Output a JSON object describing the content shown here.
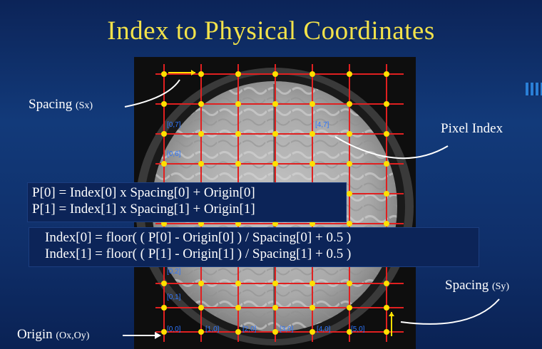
{
  "slide": {
    "title": "Index to Physical Coordinates"
  },
  "labels": {
    "spacing_x": {
      "text": "Spacing",
      "sub": "(Sx)"
    },
    "pixel_index": {
      "text": "Pixel Index"
    },
    "spacing_y": {
      "text": "Spacing",
      "sub": "(Sy)"
    },
    "origin": {
      "text": "Origin",
      "sub": "(Ox,Oy)"
    }
  },
  "formulas": {
    "forward": [
      "P[0] = Index[0] x Spacing[0] + Origin[0]",
      "P[1] = Index[1] x Spacing[1] + Origin[1]"
    ],
    "inverse": [
      "Index[0] = floor( ( P[0] - Origin[0] ) / Spacing[0] + 0.5 )",
      "Index[1] = floor( ( P[1] - Origin[1] ) / Spacing[1] + 0.5 )"
    ]
  },
  "pixel_indices": {
    "i07": "[0,7]",
    "i47": "[4,7]",
    "i06": "[0,6]",
    "i02": "[0,2]",
    "i01": "[0,1]",
    "i00": "[0,0]",
    "i10": "[1,0]",
    "i20": "[2,0]",
    "i30": "[3,0]",
    "i40": "[4,0]",
    "i50": "[5,0]"
  },
  "colors": {
    "title": "#f2e24a",
    "grid_line": "#e02020",
    "grid_point": "#ffe000",
    "index_text": "#2d76ff"
  }
}
